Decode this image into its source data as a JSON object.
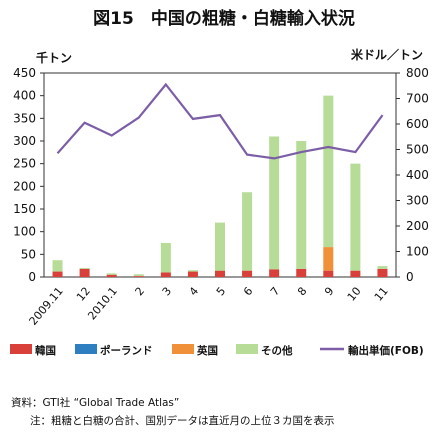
{
  "chart_data": {
    "type": "bar",
    "title": "図15　中国の粗糖・白糖輸入状況",
    "left_unit": "千トン",
    "right_unit": "米ドル／トン",
    "categories": [
      "2009.11",
      "12",
      "2010.1",
      "2",
      "3",
      "4",
      "5",
      "6",
      "7",
      "8",
      "9",
      "10",
      "11"
    ],
    "ylim_left": [
      0,
      450
    ],
    "left_ticks": [
      0,
      50,
      100,
      150,
      200,
      250,
      300,
      350,
      400,
      450
    ],
    "ylim_right": [
      0,
      800
    ],
    "right_ticks": [
      0,
      100,
      200,
      300,
      400,
      500,
      600,
      700,
      800
    ],
    "stacked": true,
    "series": [
      {
        "name": "韓国",
        "type": "bar",
        "color": "#d9403a",
        "values": [
          12,
          18,
          5,
          2,
          10,
          12,
          14,
          14,
          17,
          18,
          14,
          14,
          18
        ]
      },
      {
        "name": "ポーランド",
        "type": "bar",
        "color": "#2e7fc2",
        "values": [
          0,
          0,
          0,
          0,
          0,
          0,
          0,
          0,
          0,
          0,
          0,
          0,
          0
        ]
      },
      {
        "name": "英国",
        "type": "bar",
        "color": "#f0913a",
        "values": [
          0,
          0,
          0,
          0,
          0,
          0,
          0,
          0,
          0,
          0,
          52,
          0,
          0
        ]
      },
      {
        "name": "その他",
        "type": "bar",
        "color": "#b7dc98",
        "values": [
          25,
          2,
          3,
          4,
          65,
          3,
          106,
          173,
          293,
          282,
          334,
          236,
          6
        ]
      },
      {
        "name": "輸出単価(FOB)",
        "type": "line",
        "axis": "right",
        "color": "#7b5ea6",
        "values": [
          485,
          605,
          555,
          625,
          755,
          620,
          635,
          480,
          465,
          490,
          510,
          490,
          635
        ]
      }
    ],
    "grid": false,
    "legend_position": "bottom"
  },
  "notes": {
    "source": "資料：GTI社 “Global Trade Atlas”",
    "note": "注：粗糖と白糖の合計、国別データは直近月の上位３カ国を表示"
  }
}
